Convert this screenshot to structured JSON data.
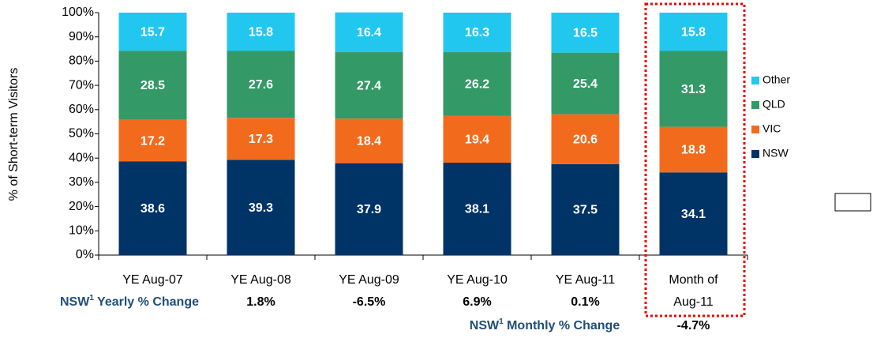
{
  "chart_data": {
    "type": "stacked_bar",
    "categories": [
      "YE Aug-07",
      "YE Aug-08",
      "YE Aug-09",
      "YE Aug-10",
      "YE Aug-11",
      "Month of\nAug-11"
    ],
    "series": [
      {
        "name": "NSW",
        "color": "#003366",
        "values": [
          38.6,
          39.3,
          37.9,
          38.1,
          37.5,
          34.1
        ]
      },
      {
        "name": "VIC",
        "color": "#f26b1d",
        "values": [
          17.2,
          17.3,
          18.4,
          19.4,
          20.6,
          18.8
        ]
      },
      {
        "name": "QLD",
        "color": "#339966",
        "values": [
          28.5,
          27.6,
          27.4,
          26.2,
          25.4,
          31.3
        ]
      },
      {
        "name": "Other",
        "color": "#22c7f0",
        "values": [
          15.7,
          15.8,
          16.4,
          16.3,
          16.5,
          15.8
        ]
      }
    ],
    "ylabel": "% of Short-term Visitors",
    "ylim": [
      0,
      100
    ],
    "yticks": [
      {
        "value": 0,
        "label": "0%"
      },
      {
        "value": 10,
        "label": "10%"
      },
      {
        "value": 20,
        "label": "20%"
      },
      {
        "value": 30,
        "label": "30%"
      },
      {
        "value": 40,
        "label": "40%"
      },
      {
        "value": 50,
        "label": "50%"
      },
      {
        "value": 60,
        "label": "60%"
      },
      {
        "value": 70,
        "label": "70%"
      },
      {
        "value": 80,
        "label": "80%"
      },
      {
        "value": 90,
        "label": "90%"
      },
      {
        "value": 100,
        "label": "100%"
      }
    ],
    "legend": "right",
    "yearly_change": {
      "label": "NSW",
      "footnote": "1",
      "text": " Yearly % Change",
      "values": [
        "1.8%",
        "-6.5%",
        "6.9%",
        "0.1%"
      ]
    },
    "monthly_change": {
      "label": "NSW",
      "footnote": "1",
      "text": " Monthly % Change",
      "values": [
        "-4.7%"
      ]
    }
  }
}
